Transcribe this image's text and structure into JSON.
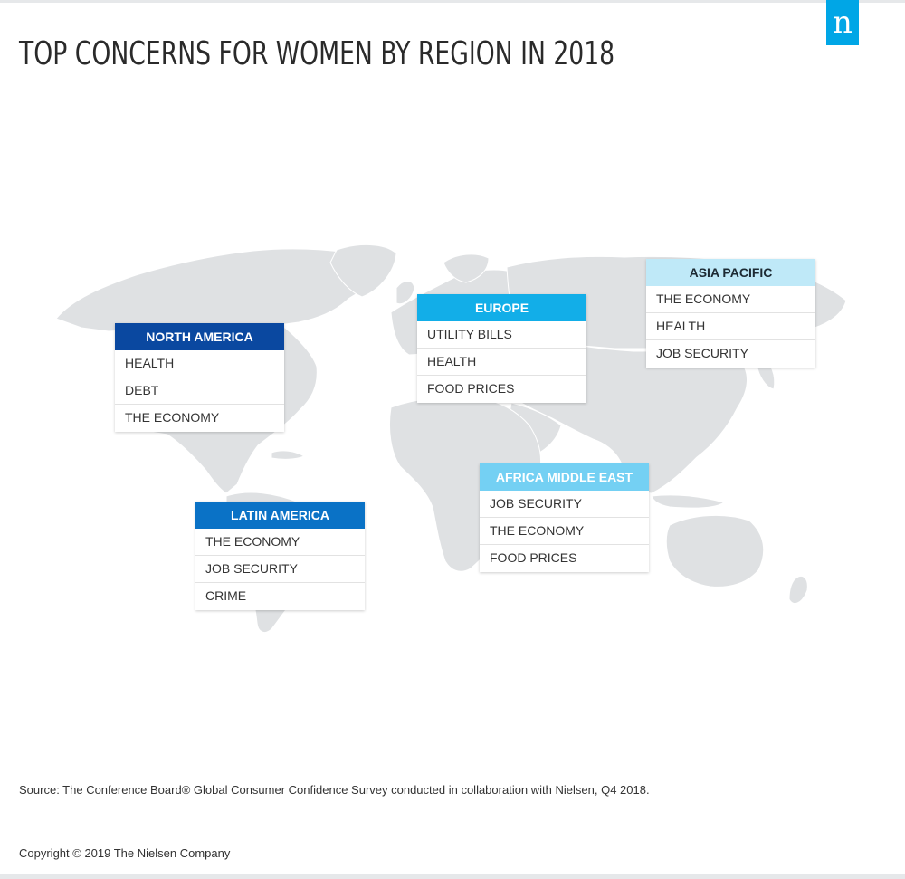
{
  "title": "TOP CONCERNS FOR WOMEN BY REGION IN 2018",
  "logo_letter": "n",
  "colors": {
    "north_america": "#0a48a0",
    "latin_america": "#0a72c6",
    "europe": "#12aee8",
    "africa_middle_east": "#74d0f3",
    "asia_pacific": "#bfe9f8",
    "land": "#dfe1e3",
    "logo": "#00a6e6"
  },
  "regions": [
    {
      "id": "north_america",
      "name": "NORTH AMERICA",
      "concerns": [
        "HEALTH",
        "DEBT",
        "THE ECONOMY"
      ]
    },
    {
      "id": "europe",
      "name": "EUROPE",
      "concerns": [
        "UTILITY BILLS",
        "HEALTH",
        "FOOD PRICES"
      ]
    },
    {
      "id": "asia_pacific",
      "name": "ASIA PACIFIC",
      "concerns": [
        "THE ECONOMY",
        "HEALTH",
        "JOB SECURITY"
      ]
    },
    {
      "id": "africa_middle_east",
      "name": "AFRICA MIDDLE EAST",
      "concerns": [
        "JOB SECURITY",
        "THE ECONOMY",
        "FOOD PRICES"
      ]
    },
    {
      "id": "latin_america",
      "name": "LATIN AMERICA",
      "concerns": [
        "THE ECONOMY",
        "JOB SECURITY",
        "CRIME"
      ]
    }
  ],
  "source": "Source: The Conference Board® Global Consumer Confidence Survey conducted in collaboration with Nielsen, Q4 2018.",
  "copyright": "Copyright © 2019 The Nielsen Company"
}
